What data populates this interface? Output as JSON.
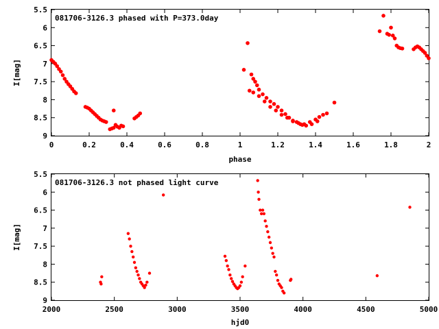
{
  "chart_data": [
    {
      "type": "scatter",
      "title": "081706-3126.3 phased with P=373.0day",
      "xlabel": "phase",
      "ylabel": "I[mag]",
      "xlim": [
        0,
        2
      ],
      "ylim": [
        5.5,
        9
      ],
      "y_inverted": true,
      "grid": false,
      "xticks": [
        "0",
        "0.2",
        "0.4",
        "0.6",
        "0.8",
        "1",
        "1.2",
        "1.4",
        "1.6",
        "1.8",
        "2"
      ],
      "xtick_values": [
        0,
        0.2,
        0.4,
        0.6,
        0.8,
        1.0,
        1.2,
        1.4,
        1.6,
        1.8,
        2.0
      ],
      "yticks": [
        "5.5",
        "6",
        "6.5",
        "7",
        "7.5",
        "8",
        "8.5",
        "9"
      ],
      "ytick_values": [
        5.5,
        6,
        6.5,
        7,
        7.5,
        8,
        8.5,
        9
      ],
      "marker_color": "#ff0000",
      "series": [
        {
          "x": [
            0.0,
            0.01,
            0.02,
            0.03,
            0.04,
            0.05,
            0.06,
            0.07,
            0.08,
            0.09,
            0.1,
            0.11,
            0.12,
            0.13,
            0.18,
            0.19,
            0.2,
            0.21,
            0.22,
            0.23,
            0.24,
            0.25,
            0.26,
            0.27,
            0.28,
            0.29,
            0.31,
            0.32,
            0.33,
            0.33,
            0.34,
            0.35,
            0.36,
            0.37,
            0.38,
            0.44,
            0.45,
            0.46,
            0.47,
            1.02,
            1.04,
            1.06,
            1.07,
            1.08,
            1.09,
            1.1,
            1.12,
            1.14,
            1.16,
            1.18,
            1.2,
            1.22,
            1.24,
            1.26,
            1.28,
            1.3,
            1.32,
            1.05,
            1.07,
            1.1,
            1.13,
            1.16,
            1.19,
            1.22,
            1.25,
            1.28,
            1.31,
            1.34,
            1.37,
            1.4,
            1.42,
            1.44,
            1.46,
            1.33,
            1.35,
            1.38,
            1.41,
            1.5,
            1.74,
            1.76,
            1.78,
            1.79,
            1.8,
            1.81,
            1.82,
            1.83,
            1.84,
            1.85,
            1.86,
            1.92,
            1.93,
            1.94,
            1.95,
            1.96,
            1.97,
            1.98,
            1.99,
            2.0
          ],
          "y": [
            6.9,
            6.95,
            7.0,
            7.07,
            7.15,
            7.22,
            7.32,
            7.42,
            7.5,
            7.57,
            7.63,
            7.7,
            7.77,
            7.82,
            8.2,
            8.22,
            8.25,
            8.3,
            8.35,
            8.4,
            8.45,
            8.5,
            8.55,
            8.58,
            8.6,
            8.62,
            8.82,
            8.8,
            8.78,
            8.3,
            8.7,
            8.75,
            8.78,
            8.72,
            8.74,
            8.52,
            8.48,
            8.44,
            8.38,
            7.17,
            6.43,
            7.3,
            7.42,
            7.5,
            7.6,
            7.72,
            7.85,
            7.95,
            8.05,
            8.12,
            8.2,
            8.3,
            8.4,
            8.5,
            8.58,
            8.62,
            8.68,
            7.75,
            7.8,
            7.9,
            8.05,
            8.2,
            8.3,
            8.42,
            8.5,
            8.6,
            8.65,
            8.68,
            8.62,
            8.55,
            8.48,
            8.42,
            8.38,
            8.7,
            8.72,
            8.68,
            8.6,
            8.08,
            6.1,
            5.67,
            6.17,
            6.2,
            6.0,
            6.22,
            6.3,
            6.5,
            6.55,
            6.57,
            6.58,
            6.6,
            6.55,
            6.52,
            6.55,
            6.6,
            6.65,
            6.7,
            6.78,
            6.85
          ]
        }
      ]
    },
    {
      "type": "scatter",
      "title": "081706-3126.3 not phased light curve",
      "xlabel": "hjd0",
      "ylabel": "I[mag]",
      "xlim": [
        2000,
        5000
      ],
      "ylim": [
        5.5,
        9
      ],
      "y_inverted": true,
      "grid": false,
      "xticks": [
        "2000",
        "2500",
        "3000",
        "3500",
        "4000",
        "4500",
        "5000"
      ],
      "xtick_values": [
        2000,
        2500,
        3000,
        3500,
        4000,
        4500,
        5000
      ],
      "yticks": [
        "5.5",
        "6",
        "6.5",
        "7",
        "7.5",
        "8",
        "8.5",
        "9"
      ],
      "ytick_values": [
        5.5,
        6,
        6.5,
        7,
        7.5,
        8,
        8.5,
        9
      ],
      "marker_color": "#ff0000",
      "series": [
        {
          "x": [
            2390,
            2395,
            2400,
            2610,
            2620,
            2630,
            2640,
            2650,
            2660,
            2670,
            2680,
            2690,
            2700,
            2710,
            2720,
            2730,
            2740,
            2750,
            2760,
            2780,
            2890,
            3380,
            3390,
            3400,
            3410,
            3420,
            3430,
            3440,
            3450,
            3460,
            3470,
            3480,
            3490,
            3500,
            3510,
            3520,
            3540,
            3640,
            3645,
            3650,
            3660,
            3670,
            3680,
            3690,
            3700,
            3710,
            3720,
            3730,
            3740,
            3750,
            3760,
            3770,
            3780,
            3790,
            3800,
            3810,
            3820,
            3830,
            3840,
            3850,
            3900,
            3905,
            4590,
            4850
          ],
          "y": [
            8.5,
            8.55,
            8.35,
            7.15,
            7.3,
            7.5,
            7.65,
            7.8,
            7.95,
            8.1,
            8.2,
            8.3,
            8.4,
            8.5,
            8.55,
            8.6,
            8.65,
            8.58,
            8.5,
            8.25,
            6.08,
            7.78,
            7.9,
            8.05,
            8.15,
            8.3,
            8.4,
            8.48,
            8.55,
            8.6,
            8.65,
            8.68,
            8.65,
            8.6,
            8.5,
            8.35,
            8.05,
            5.68,
            6.0,
            6.2,
            6.5,
            6.6,
            6.5,
            6.6,
            6.8,
            6.95,
            7.1,
            7.25,
            7.4,
            7.55,
            7.7,
            7.8,
            8.2,
            8.3,
            8.45,
            8.55,
            8.6,
            8.65,
            8.75,
            8.8,
            8.45,
            8.42,
            8.32,
            6.42
          ]
        }
      ]
    }
  ]
}
